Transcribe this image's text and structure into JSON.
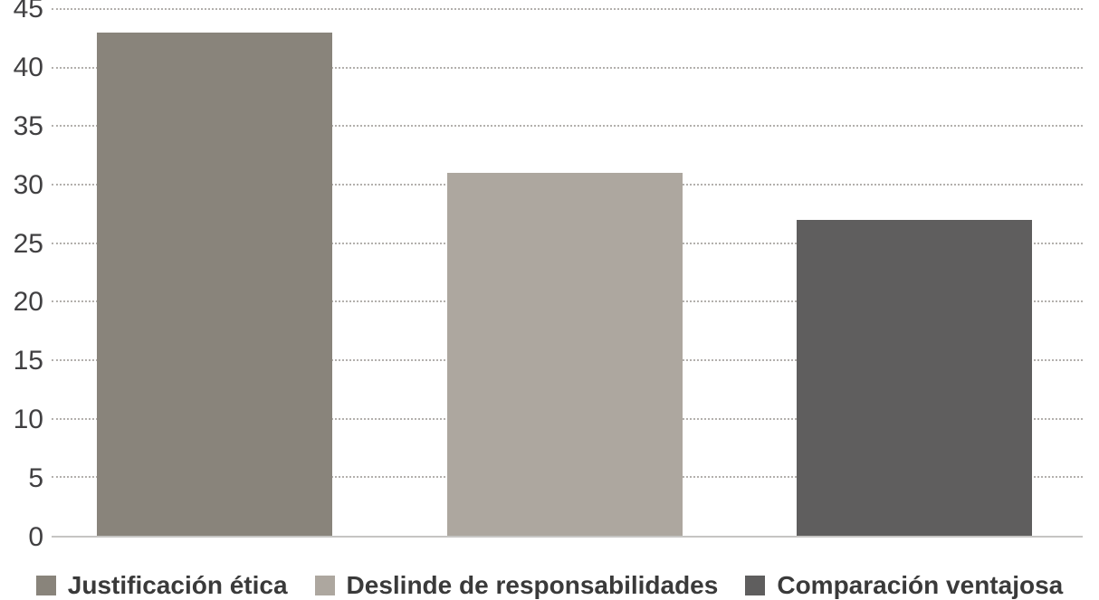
{
  "chart_data": {
    "type": "bar",
    "categories": [
      "Justificación ética",
      "Deslinde de responsabilidades",
      "Comparación ventajosa"
    ],
    "series": [
      {
        "name": "Justificación ética",
        "value": 43,
        "color": "#89847b"
      },
      {
        "name": "Deslinde de responsabilidades",
        "value": 31,
        "color": "#ada79f"
      },
      {
        "name": "Comparación ventajosa",
        "value": 27,
        "color": "#5f5e5e"
      }
    ],
    "ylim": [
      0,
      45
    ],
    "yticks": [
      0,
      5,
      10,
      15,
      20,
      25,
      30,
      35,
      40,
      45
    ],
    "xlabel": "",
    "ylabel": "",
    "grid": "horizontal-dotted",
    "legend_position": "bottom"
  },
  "colors": {
    "background": "#ffffff",
    "tick_text": "#414042",
    "legend_text": "#3a3a3a",
    "gridline": "#b3b0ad",
    "baseline": "#c6c5c3"
  }
}
